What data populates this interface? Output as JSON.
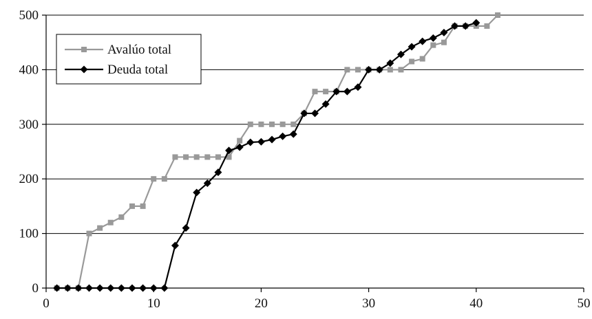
{
  "chart_data": {
    "type": "line",
    "title": "",
    "xlabel": "",
    "ylabel": "",
    "xlim": [
      0,
      50
    ],
    "ylim": [
      0,
      500
    ],
    "x_ticks": [
      0,
      10,
      20,
      30,
      40,
      50
    ],
    "y_ticks": [
      0,
      100,
      200,
      300,
      400,
      500
    ],
    "grid": "horizontal",
    "legend_position": "top-left",
    "series": [
      {
        "name": "Avalúo total",
        "color": "#999999",
        "marker": "square",
        "points": [
          [
            1,
            0
          ],
          [
            2,
            0
          ],
          [
            3,
            0
          ],
          [
            4,
            100
          ],
          [
            5,
            110
          ],
          [
            6,
            120
          ],
          [
            7,
            130
          ],
          [
            8,
            150
          ],
          [
            9,
            150
          ],
          [
            10,
            200
          ],
          [
            11,
            200
          ],
          [
            12,
            240
          ],
          [
            13,
            240
          ],
          [
            14,
            240
          ],
          [
            15,
            240
          ],
          [
            16,
            240
          ],
          [
            17,
            240
          ],
          [
            18,
            270
          ],
          [
            19,
            300
          ],
          [
            20,
            300
          ],
          [
            21,
            300
          ],
          [
            22,
            300
          ],
          [
            23,
            300
          ],
          [
            24,
            320
          ],
          [
            25,
            360
          ],
          [
            26,
            360
          ],
          [
            27,
            360
          ],
          [
            28,
            400
          ],
          [
            29,
            400
          ],
          [
            30,
            400
          ],
          [
            31,
            400
          ],
          [
            32,
            400
          ],
          [
            33,
            400
          ],
          [
            34,
            415
          ],
          [
            35,
            420
          ],
          [
            36,
            445
          ],
          [
            37,
            450
          ],
          [
            38,
            480
          ],
          [
            39,
            480
          ],
          [
            40,
            480
          ],
          [
            41,
            480
          ],
          [
            42,
            500
          ]
        ]
      },
      {
        "name": "Deuda total",
        "color": "#000000",
        "marker": "diamond",
        "points": [
          [
            1,
            0
          ],
          [
            2,
            0
          ],
          [
            3,
            0
          ],
          [
            4,
            0
          ],
          [
            5,
            0
          ],
          [
            6,
            0
          ],
          [
            7,
            0
          ],
          [
            8,
            0
          ],
          [
            9,
            0
          ],
          [
            10,
            0
          ],
          [
            11,
            0
          ],
          [
            12,
            78
          ],
          [
            13,
            110
          ],
          [
            14,
            175
          ],
          [
            15,
            192
          ],
          [
            16,
            212
          ],
          [
            17,
            252
          ],
          [
            18,
            258
          ],
          [
            19,
            267
          ],
          [
            20,
            268
          ],
          [
            21,
            272
          ],
          [
            22,
            278
          ],
          [
            23,
            282
          ],
          [
            24,
            320
          ],
          [
            25,
            320
          ],
          [
            26,
            337
          ],
          [
            27,
            360
          ],
          [
            28,
            360
          ],
          [
            29,
            368
          ],
          [
            30,
            400
          ],
          [
            31,
            400
          ],
          [
            32,
            412
          ],
          [
            33,
            428
          ],
          [
            34,
            442
          ],
          [
            35,
            452
          ],
          [
            36,
            458
          ],
          [
            37,
            468
          ],
          [
            38,
            480
          ],
          [
            39,
            480
          ],
          [
            40,
            486
          ]
        ]
      }
    ]
  }
}
